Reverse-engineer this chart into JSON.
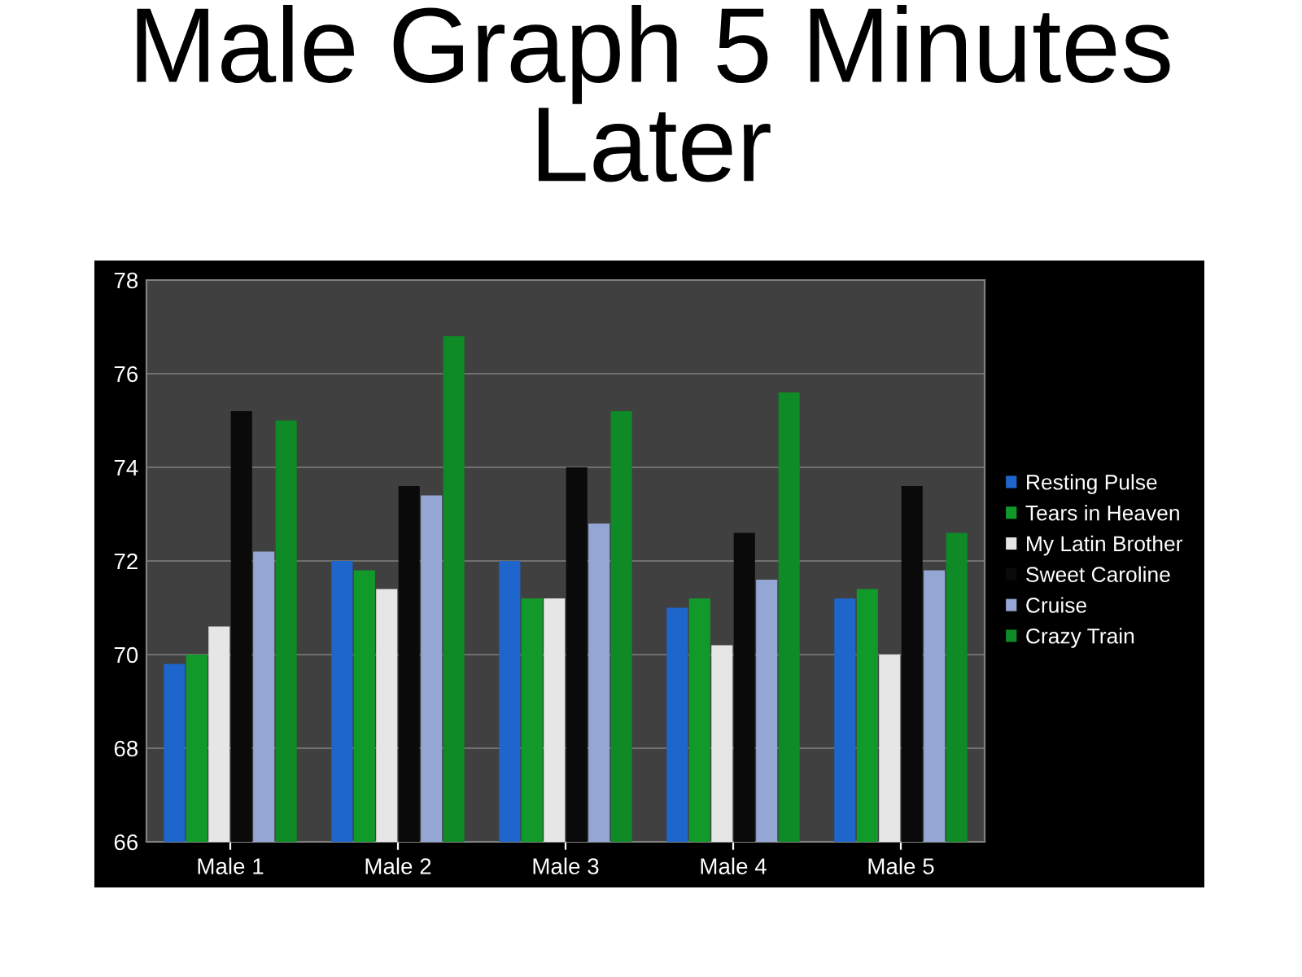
{
  "chart_data": {
    "type": "bar",
    "title": "Male Graph 5 Minutes Later",
    "categories": [
      "Male 1",
      "Male 2",
      "Male 3",
      "Male 4",
      "Male 5"
    ],
    "series": [
      {
        "name": "Resting Pulse",
        "color": "#1f66cc",
        "values": [
          69.8,
          72.0,
          72.0,
          71.0,
          71.2
        ]
      },
      {
        "name": "Tears in Heaven",
        "color": "#119a2a",
        "values": [
          70.0,
          71.8,
          71.2,
          71.2,
          71.4
        ]
      },
      {
        "name": "My Latin Brother",
        "color": "#e6e6e6",
        "values": [
          70.6,
          71.4,
          71.2,
          70.2,
          70.0
        ]
      },
      {
        "name": "Sweet Caroline",
        "color": "#0a0a0a",
        "values": [
          75.2,
          73.6,
          74.0,
          72.6,
          73.6
        ]
      },
      {
        "name": "Cruise",
        "color": "#94a6d4",
        "values": [
          72.2,
          73.4,
          72.8,
          71.6,
          71.8
        ]
      },
      {
        "name": "Crazy Train",
        "color": "#0e8a26",
        "values": [
          75.0,
          76.8,
          75.2,
          75.6,
          72.6
        ]
      }
    ],
    "ylim": [
      66,
      78
    ],
    "yticks": [
      66,
      68,
      70,
      72,
      74,
      76,
      78
    ],
    "grid": "y",
    "legend": "right"
  }
}
